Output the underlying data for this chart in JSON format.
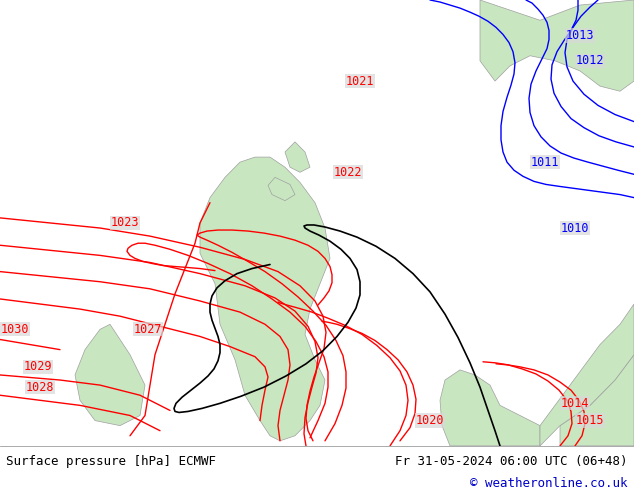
{
  "title_left": "Surface pressure [hPa] ECMWF",
  "title_right": "Fr 31-05-2024 06:00 UTC (06+48)",
  "copyright": "© weatheronline.co.uk",
  "bg_color": "#d8d8d8",
  "land_color": "#c8e6c0",
  "border_color": "#a0a0a0",
  "red_contour_color": "#ff0000",
  "blue_contour_color": "#0000ff",
  "black_contour_color": "#000000",
  "footer_bg": "#ffffff",
  "footer_text_color": "#000000",
  "copyright_color": "#0000cc",
  "label_fontsize": 8.5,
  "footer_fontsize": 9
}
